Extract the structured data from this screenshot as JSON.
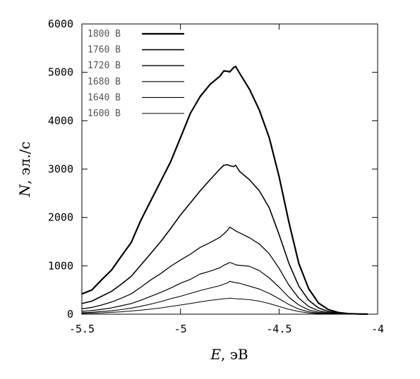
{
  "chart_data": {
    "type": "line",
    "xlabel_var": "E",
    "xlabel_unit": ", эВ",
    "ylabel_var": "N",
    "ylabel_unit": ", эл./с",
    "xlim": [
      -5.5,
      -4
    ],
    "ylim": [
      0,
      6000
    ],
    "xticks": [
      -5.5,
      -5,
      -4.5,
      -4
    ],
    "xtick_labels": [
      "-5.5",
      "-5",
      "-4.5",
      "-4"
    ],
    "yticks": [
      0,
      1000,
      2000,
      3000,
      4000,
      5000,
      6000
    ],
    "ytick_labels": [
      "0",
      "1000",
      "2000",
      "3000",
      "4000",
      "5000",
      "6000"
    ],
    "grid": false,
    "legend_position": "top-left",
    "series": [
      {
        "name": "1800 В",
        "x": [
          -5.5,
          -5.45,
          -5.4,
          -5.35,
          -5.3,
          -5.25,
          -5.2,
          -5.15,
          -5.1,
          -5.05,
          -5.0,
          -4.95,
          -4.9,
          -4.85,
          -4.8,
          -4.78,
          -4.76,
          -4.75,
          -4.73,
          -4.72,
          -4.7,
          -4.65,
          -4.6,
          -4.55,
          -4.5,
          -4.45,
          -4.4,
          -4.35,
          -4.3,
          -4.25,
          -4.2,
          -4.15,
          -4.1,
          -4.05
        ],
        "y": [
          420,
          500,
          710,
          910,
          1200,
          1480,
          1950,
          2350,
          2750,
          3150,
          3650,
          4150,
          4500,
          4750,
          4920,
          5030,
          5020,
          5010,
          5100,
          5120,
          4980,
          4650,
          4220,
          3650,
          2850,
          1900,
          1050,
          530,
          230,
          95,
          35,
          12,
          5,
          2
        ]
      },
      {
        "name": "1760 В",
        "x": [
          -5.5,
          -5.45,
          -5.4,
          -5.35,
          -5.3,
          -5.25,
          -5.2,
          -5.15,
          -5.1,
          -5.05,
          -5.0,
          -4.95,
          -4.9,
          -4.85,
          -4.8,
          -4.78,
          -4.76,
          -4.75,
          -4.73,
          -4.72,
          -4.7,
          -4.65,
          -4.6,
          -4.55,
          -4.5,
          -4.45,
          -4.4,
          -4.35,
          -4.3,
          -4.25,
          -4.2,
          -4.15,
          -4.1,
          -4.05
        ],
        "y": [
          220,
          270,
          370,
          470,
          620,
          780,
          1020,
          1260,
          1500,
          1770,
          2050,
          2300,
          2550,
          2780,
          3000,
          3080,
          3090,
          3070,
          3050,
          3080,
          2950,
          2780,
          2550,
          2200,
          1650,
          1050,
          580,
          290,
          130,
          55,
          20,
          8,
          3,
          1
        ]
      },
      {
        "name": "1720 В",
        "x": [
          -5.5,
          -5.45,
          -5.4,
          -5.35,
          -5.3,
          -5.25,
          -5.2,
          -5.15,
          -5.1,
          -5.05,
          -5.0,
          -4.95,
          -4.9,
          -4.85,
          -4.8,
          -4.78,
          -4.76,
          -4.75,
          -4.73,
          -4.72,
          -4.7,
          -4.65,
          -4.6,
          -4.55,
          -4.5,
          -4.45,
          -4.4,
          -4.35,
          -4.3,
          -4.25,
          -4.2,
          -4.15,
          -4.1,
          -4.05
        ],
        "y": [
          110,
          140,
          190,
          250,
          330,
          420,
          560,
          710,
          840,
          990,
          1120,
          1240,
          1380,
          1480,
          1590,
          1660,
          1740,
          1800,
          1750,
          1720,
          1680,
          1580,
          1450,
          1250,
          950,
          600,
          330,
          160,
          70,
          30,
          10,
          4,
          2,
          1
        ]
      },
      {
        "name": "1680 В",
        "x": [
          -5.5,
          -5.45,
          -5.4,
          -5.35,
          -5.3,
          -5.25,
          -5.2,
          -5.15,
          -5.1,
          -5.05,
          -5.0,
          -4.95,
          -4.9,
          -4.85,
          -4.8,
          -4.78,
          -4.76,
          -4.75,
          -4.73,
          -4.72,
          -4.7,
          -4.65,
          -4.6,
          -4.55,
          -4.5,
          -4.45,
          -4.4,
          -4.35,
          -4.3,
          -4.25,
          -4.2,
          -4.15,
          -4.1,
          -4.05
        ],
        "y": [
          60,
          75,
          100,
          130,
          175,
          220,
          290,
          370,
          450,
          540,
          640,
          720,
          830,
          890,
          960,
          1010,
          1050,
          1070,
          1040,
          1020,
          1010,
          990,
          900,
          750,
          560,
          350,
          190,
          90,
          40,
          16,
          6,
          2,
          1,
          0
        ]
      },
      {
        "name": "1640 В",
        "x": [
          -5.5,
          -5.45,
          -5.4,
          -5.35,
          -5.3,
          -5.25,
          -5.2,
          -5.15,
          -5.1,
          -5.05,
          -5.0,
          -4.95,
          -4.9,
          -4.85,
          -4.8,
          -4.78,
          -4.76,
          -4.75,
          -4.73,
          -4.72,
          -4.7,
          -4.65,
          -4.6,
          -4.55,
          -4.5,
          -4.45,
          -4.4,
          -4.35,
          -4.3,
          -4.25,
          -4.2,
          -4.15,
          -4.1,
          -4.05
        ],
        "y": [
          30,
          40,
          55,
          70,
          95,
          125,
          165,
          210,
          260,
          320,
          370,
          430,
          490,
          540,
          590,
          620,
          650,
          680,
          660,
          650,
          640,
          580,
          520,
          430,
          320,
          200,
          105,
          50,
          22,
          9,
          3,
          1,
          0,
          0
        ]
      },
      {
        "name": "1600 В",
        "x": [
          -5.5,
          -5.45,
          -5.4,
          -5.35,
          -5.3,
          -5.25,
          -5.2,
          -5.15,
          -5.1,
          -5.05,
          -5.0,
          -4.95,
          -4.9,
          -4.85,
          -4.8,
          -4.78,
          -4.76,
          -4.75,
          -4.73,
          -4.72,
          -4.7,
          -4.65,
          -4.6,
          -4.55,
          -4.5,
          -4.45,
          -4.4,
          -4.35,
          -4.3,
          -4.25,
          -4.2,
          -4.15,
          -4.1,
          -4.05
        ],
        "y": [
          15,
          20,
          28,
          38,
          50,
          65,
          85,
          105,
          130,
          160,
          190,
          220,
          255,
          285,
          310,
          320,
          325,
          330,
          325,
          320,
          315,
          300,
          270,
          220,
          160,
          100,
          55,
          25,
          11,
          5,
          2,
          1,
          0,
          0
        ]
      }
    ]
  }
}
